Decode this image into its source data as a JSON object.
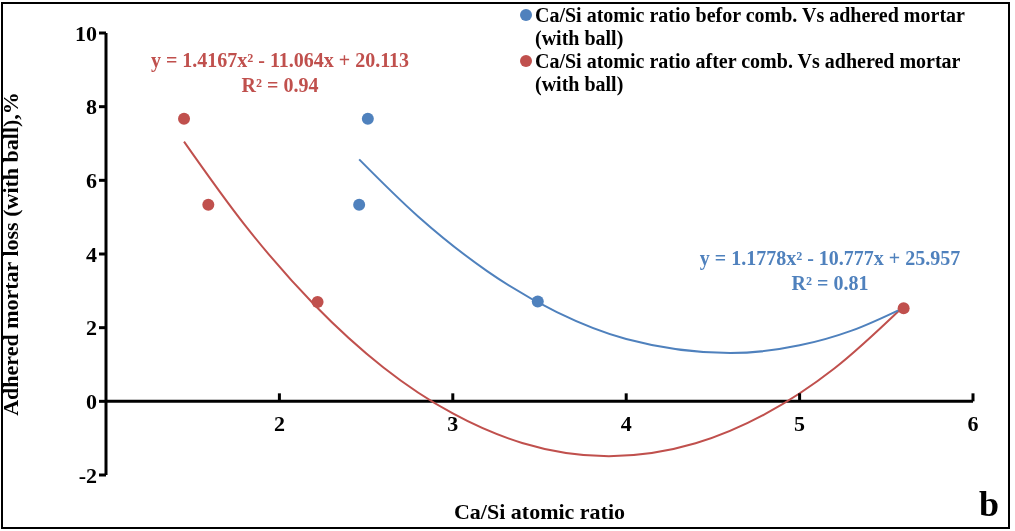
{
  "chart_data": {
    "type": "scatter",
    "xlabel": "Ca/Si atomic ratio",
    "ylabel": "Adhered mortar loss (with ball),%",
    "xlim": [
      1,
      6
    ],
    "xticks": [
      2,
      3,
      4,
      5,
      6
    ],
    "ylim": [
      -2,
      10
    ],
    "yticks": [
      -2,
      0,
      2,
      4,
      6,
      8,
      10
    ],
    "grid": false,
    "legend": "top right",
    "marker": "circle",
    "series": [
      {
        "name": "Ca/Si atomic ratio befor comb. Vs adhered mortar (with ball)",
        "color": "#4f81bd",
        "x": [
          2.46,
          2.51,
          3.49
        ],
        "values": [
          5.34,
          7.67,
          2.71
        ]
      },
      {
        "name": "Ca/Si atomic ratio after comb. Vs adhered mortar (with ball)",
        "color": "#c0504d",
        "x": [
          1.45,
          1.59,
          2.22,
          5.6
        ],
        "values": [
          7.67,
          5.34,
          2.7,
          2.53
        ]
      },
      {
        "type": "line",
        "color": "#c0504d",
        "line_style": "solid",
        "marker": "none",
        "x": [
          1.45,
          1.8,
          2.2,
          2.6,
          3.0,
          3.4,
          3.9,
          4.4,
          4.8,
          5.2,
          5.6
        ],
        "values": [
          7.05,
          4.79,
          2.63,
          0.92,
          -0.33,
          -1.13,
          -1.49,
          -1.14,
          -0.35,
          0.89,
          2.58
        ]
      },
      {
        "type": "line",
        "color": "#4f81bd",
        "line_style": "solid",
        "marker": "none",
        "x": [
          2.46,
          2.8,
          3.2,
          3.6,
          4.0,
          4.6,
          5.0,
          5.3,
          5.6
        ],
        "values": [
          6.57,
          5.02,
          3.53,
          2.42,
          1.69,
          1.31,
          1.52,
          1.92,
          2.54
        ]
      }
    ],
    "annotations": [
      "y = 1.4167x² - 11.064x + 20.113\nR² = 0.94",
      "y = 1.1778x² - 10.777x + 25.957\nR² = 0.81",
      "b"
    ]
  }
}
